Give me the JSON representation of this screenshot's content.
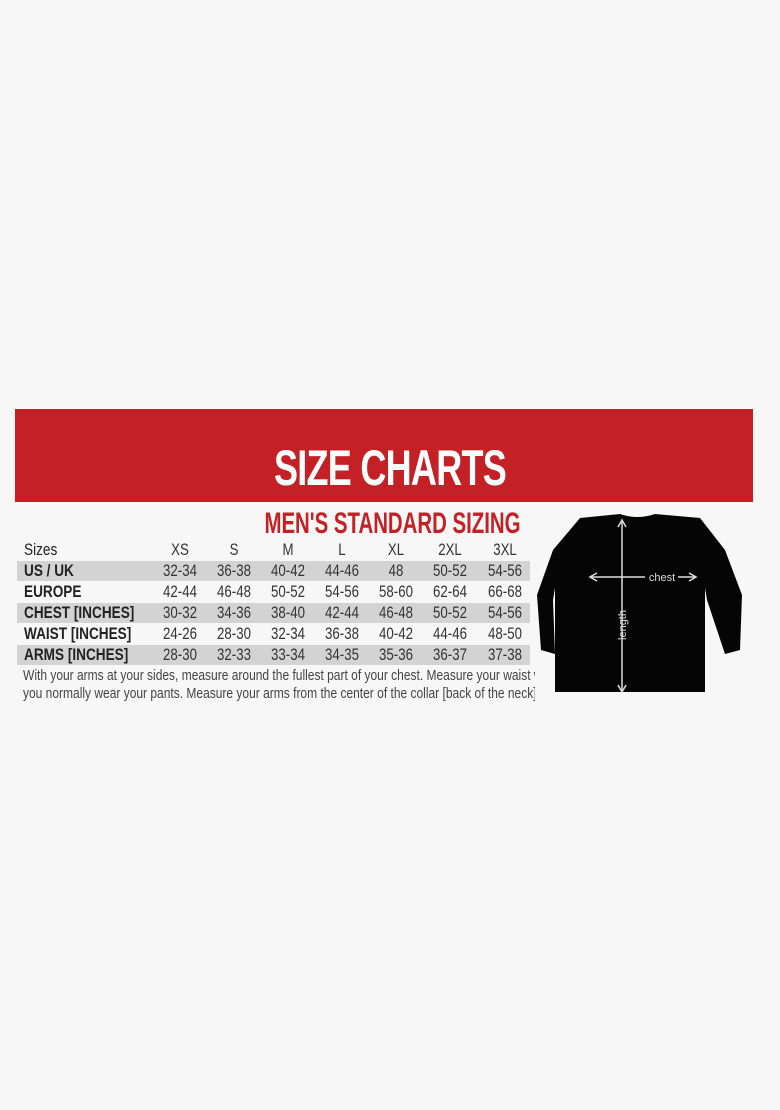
{
  "banner": {
    "title": "SIZE CHARTS",
    "color": "#c42126"
  },
  "subtitle": "MEN'S STANDARD SIZING",
  "table": {
    "header": [
      "Sizes",
      "XS",
      "S",
      "M",
      "L",
      "XL",
      "2XL",
      "3XL"
    ],
    "rows": [
      {
        "label": "US / UK",
        "values": [
          "32-34",
          "36-38",
          "40-42",
          "44-46",
          "48",
          "50-52",
          "54-56"
        ]
      },
      {
        "label": "EUROPE",
        "values": [
          "42-44",
          "46-48",
          "50-52",
          "54-56",
          "58-60",
          "62-64",
          "66-68"
        ]
      },
      {
        "label": "CHEST [INCHES]",
        "values": [
          "30-32",
          "34-36",
          "38-40",
          "42-44",
          "46-48",
          "50-52",
          "54-56"
        ]
      },
      {
        "label": "WAIST [INCHES]",
        "values": [
          "24-26",
          "28-30",
          "32-34",
          "36-38",
          "40-42",
          "44-46",
          "48-50"
        ]
      },
      {
        "label": "ARMS [INCHES]",
        "values": [
          "28-30",
          "32-33",
          "33-34",
          "34-35",
          "35-36",
          "36-37",
          "37-38"
        ]
      }
    ]
  },
  "note": {
    "line1": "With your arms at your sides, measure around the fullest part of your chest. Measure your waist where",
    "line2": "you normally wear your pants. Measure your arms from the center of the collar [back of the neck] to your wrist"
  },
  "diagram": {
    "chest_label": "chest",
    "length_label": "length"
  }
}
